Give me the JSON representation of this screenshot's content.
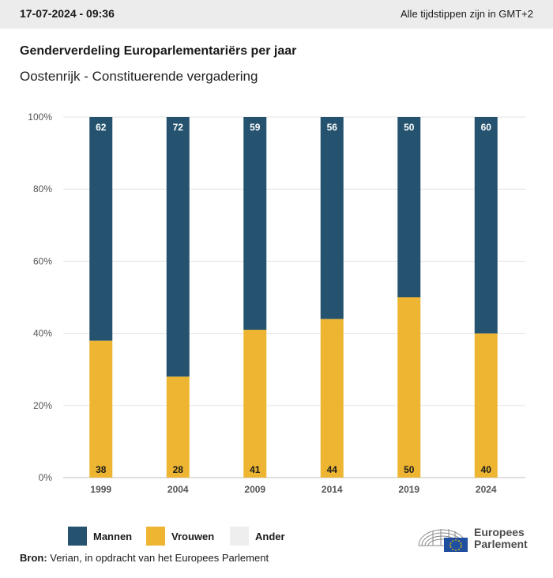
{
  "header": {
    "datetime": "17-07-2024 - 09:36",
    "timezone_note": "Alle tijdstippen zijn in GMT+2"
  },
  "title": "Genderverdeling Europarlementariërs per jaar",
  "subtitle": "Oostenrijk - Constituerende vergadering",
  "colors": {
    "mannen": "#25536f",
    "vrouwen": "#edb531",
    "ander": "#eeeeee",
    "grid": "#e3e3e3"
  },
  "legend": [
    {
      "label": "Mannen",
      "color": "#25536f"
    },
    {
      "label": "Vrouwen",
      "color": "#edb531"
    },
    {
      "label": "Ander",
      "color": "#eeeeee"
    }
  ],
  "source": {
    "prefix": "Bron:",
    "text": " Verian, in opdracht van het Europees Parlement"
  },
  "logo": {
    "line1": "Europees",
    "line2": "Parlement",
    "icon": "eu-parliament-logo-icon"
  },
  "chart_data": {
    "type": "bar",
    "stacked": true,
    "categories": [
      "1999",
      "2004",
      "2009",
      "2014",
      "2019",
      "2024"
    ],
    "series": [
      {
        "name": "Vrouwen",
        "values": [
          38,
          28,
          41,
          44,
          50,
          40
        ]
      },
      {
        "name": "Mannen",
        "values": [
          62,
          72,
          59,
          56,
          50,
          60
        ]
      }
    ],
    "yticks": [
      "0%",
      "20%",
      "40%",
      "60%",
      "80%",
      "100%"
    ],
    "ylim": [
      0,
      100
    ],
    "grid": true,
    "legend_position": "bottom-left"
  }
}
